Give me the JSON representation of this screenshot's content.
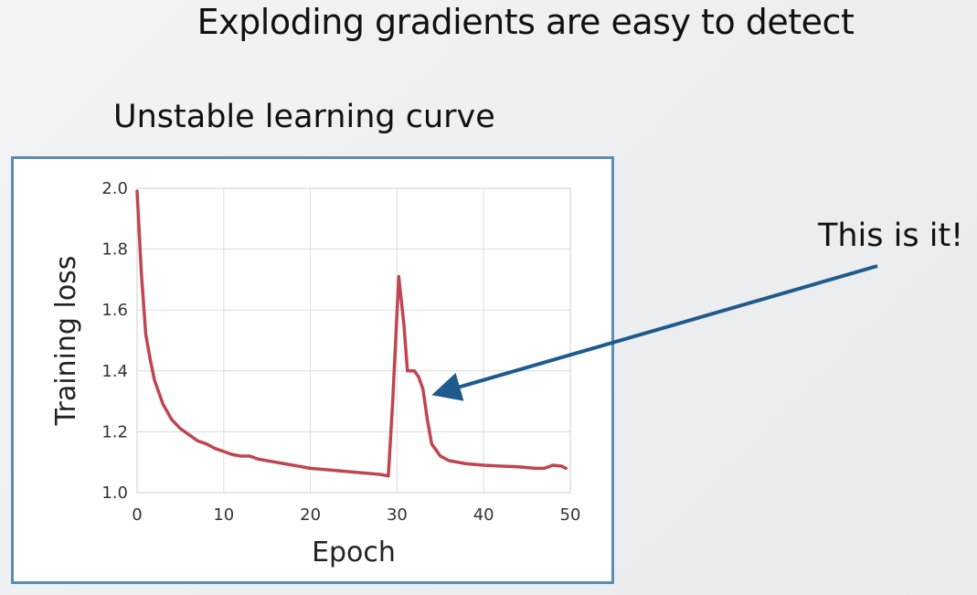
{
  "slide": {
    "title": "Exploding gradients are easy to detect",
    "subtitle": "Unstable learning curve",
    "callout": "This is it!"
  },
  "colors": {
    "frame": "#5b8db5",
    "line": "#c0454f",
    "arrow": "#1f5a8c",
    "grid": "#dcdcdc"
  },
  "chart_data": {
    "type": "line",
    "title": "",
    "xlabel": "Epoch",
    "ylabel": "Training loss",
    "xlim": [
      0,
      50
    ],
    "ylim": [
      1.0,
      2.0
    ],
    "xticks": [
      0,
      10,
      20,
      30,
      40,
      50
    ],
    "yticks": [
      1.0,
      1.2,
      1.4,
      1.6,
      1.8,
      2.0
    ],
    "xtick_labels": [
      "0",
      "10",
      "20",
      "30",
      "40",
      "50"
    ],
    "ytick_labels": [
      "1.0",
      "1.2",
      "1.4",
      "1.6",
      "1.8",
      "2.0"
    ],
    "grid": true,
    "series": [
      {
        "name": "Training loss",
        "x": [
          0,
          0.5,
          1,
          1.5,
          2,
          3,
          4,
          5,
          6,
          7,
          8,
          9,
          10,
          11,
          12,
          13,
          14,
          16,
          18,
          20,
          22,
          24,
          26,
          28,
          29,
          29.5,
          30.2,
          30.8,
          31.2,
          32,
          32.5,
          33,
          33.5,
          34,
          35,
          36,
          38,
          40,
          42,
          44,
          46,
          47,
          48,
          49,
          49.5
        ],
        "y": [
          1.99,
          1.72,
          1.52,
          1.44,
          1.37,
          1.29,
          1.24,
          1.21,
          1.19,
          1.17,
          1.16,
          1.145,
          1.135,
          1.125,
          1.12,
          1.12,
          1.11,
          1.1,
          1.09,
          1.08,
          1.075,
          1.07,
          1.065,
          1.06,
          1.055,
          1.3,
          1.71,
          1.55,
          1.4,
          1.4,
          1.38,
          1.34,
          1.24,
          1.16,
          1.12,
          1.105,
          1.095,
          1.09,
          1.087,
          1.085,
          1.08,
          1.08,
          1.09,
          1.087,
          1.08
        ]
      }
    ]
  }
}
